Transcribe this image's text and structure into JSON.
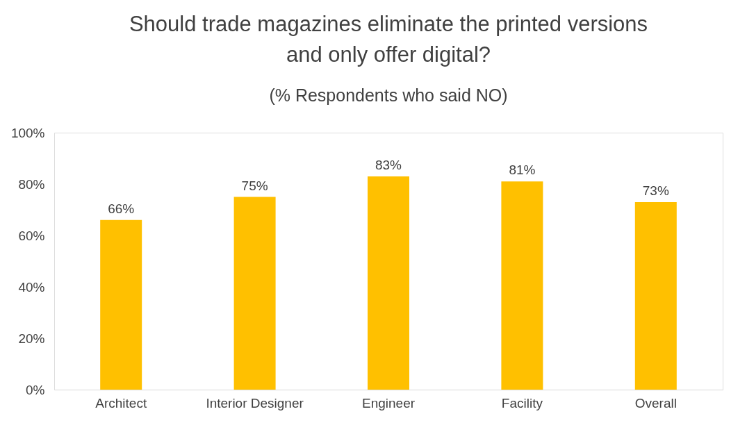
{
  "chart_data": {
    "type": "bar",
    "title": "Should trade magazines eliminate the printed versions and only offer digital?",
    "subtitle": "(% Respondents who said NO)",
    "categories": [
      "Architect",
      "Interior Designer",
      "Engineer",
      "Facility",
      "Overall"
    ],
    "values": [
      66,
      75,
      83,
      81,
      73
    ],
    "value_labels": [
      "66%",
      "75%",
      "83%",
      "81%",
      "73%"
    ],
    "color": "#ffc000",
    "ylim": [
      0,
      100
    ],
    "yticks": [
      {
        "value": 0,
        "label": "0%"
      },
      {
        "value": 20,
        "label": "20%"
      },
      {
        "value": 40,
        "label": "40%"
      },
      {
        "value": 60,
        "label": "60%"
      },
      {
        "value": 80,
        "label": "80%"
      },
      {
        "value": 100,
        "label": "100%"
      }
    ]
  }
}
